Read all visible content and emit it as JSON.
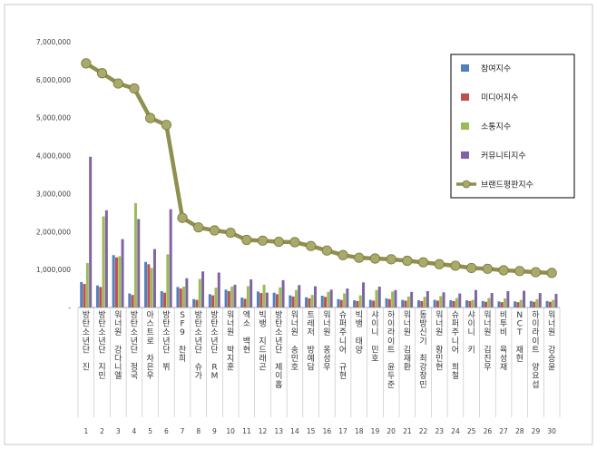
{
  "chart_data": {
    "type": "bar",
    "ylim": [
      0,
      7000000
    ],
    "yticks": [
      "-",
      "1,000,000",
      "2,000,000",
      "3,000,000",
      "4,000,000",
      "5,000,000",
      "6,000,000",
      "7,000,000"
    ],
    "grid": false,
    "legend_position": "right",
    "categories": [
      "방탄소년단 진",
      "방탄소년단 지민",
      "워너원 강다니엘",
      "방탄소년단 정국",
      "아스트로 차은우",
      "방탄소년단 뷔",
      "SF9 찬희",
      "방탄소년단 슈가",
      "방탄소년단 RM",
      "워너원 박지훈",
      "엑소 백현",
      "빅뱅 지드래곤",
      "방탄소년단 제이홉",
      "워너원 송민호",
      "트레저 방예담",
      "워너원 옹성우",
      "슈퍼주니어 규현",
      "빅뱅 태양",
      "샤이니 민호",
      "하이라이트 윤두준",
      "워너원 김재환",
      "동방신기 최강창민",
      "워너원 황민현",
      "슈퍼주니어 희철",
      "샤이니 키",
      "워너원 김진우",
      "비투비 육성재",
      "NCT 재현",
      "하이라이트 양요섭",
      "워너원 강승윤"
    ],
    "ranks": [
      "1",
      "2",
      "3",
      "4",
      "5",
      "6",
      "7",
      "8",
      "9",
      "10",
      "11",
      "12",
      "13",
      "14",
      "15",
      "16",
      "17",
      "18",
      "19",
      "20",
      "21",
      "22",
      "23",
      "24",
      "25",
      "26",
      "27",
      "28",
      "29",
      "30"
    ],
    "series": [
      {
        "name": "참여지수",
        "color": "#4f81bd",
        "values": [
          670000,
          580000,
          1380000,
          370000,
          1200000,
          430000,
          540000,
          220000,
          350000,
          470000,
          260000,
          420000,
          390000,
          320000,
          270000,
          310000,
          220000,
          190000,
          200000,
          240000,
          200000,
          190000,
          200000,
          190000,
          190000,
          170000,
          160000,
          160000,
          170000,
          170000
        ]
      },
      {
        "name": "미디어지수",
        "color": "#c0504d",
        "values": [
          620000,
          540000,
          1320000,
          330000,
          1140000,
          390000,
          500000,
          200000,
          320000,
          430000,
          230000,
          380000,
          350000,
          290000,
          240000,
          280000,
          200000,
          170000,
          180000,
          220000,
          180000,
          170000,
          180000,
          170000,
          170000,
          150000,
          140000,
          140000,
          150000,
          150000
        ]
      },
      {
        "name": "소통지수",
        "color": "#9bbb59",
        "values": [
          1170000,
          2400000,
          1350000,
          2750000,
          1040000,
          1400000,
          550000,
          750000,
          520000,
          550000,
          560000,
          600000,
          530000,
          460000,
          330000,
          410000,
          370000,
          320000,
          460000,
          420000,
          290000,
          280000,
          300000,
          250000,
          200000,
          250000,
          240000,
          200000,
          220000,
          200000
        ]
      },
      {
        "name": "커뮤니티지수",
        "color": "#8064a2",
        "values": [
          3970000,
          2560000,
          1800000,
          2330000,
          1540000,
          2590000,
          770000,
          950000,
          920000,
          600000,
          740000,
          390000,
          720000,
          590000,
          560000,
          470000,
          500000,
          660000,
          550000,
          460000,
          410000,
          430000,
          400000,
          370000,
          460000,
          380000,
          430000,
          440000,
          380000,
          360000
        ]
      },
      {
        "name": "브랜드평판지수",
        "color": "#8f8f4f",
        "type": "line",
        "values": [
          6430000,
          6170000,
          5900000,
          5770000,
          4990000,
          4810000,
          2360000,
          2110000,
          2030000,
          1970000,
          1780000,
          1760000,
          1730000,
          1720000,
          1620000,
          1500000,
          1380000,
          1310000,
          1290000,
          1270000,
          1230000,
          1190000,
          1140000,
          1100000,
          1040000,
          1020000,
          980000,
          960000,
          930000,
          910000
        ]
      }
    ]
  }
}
